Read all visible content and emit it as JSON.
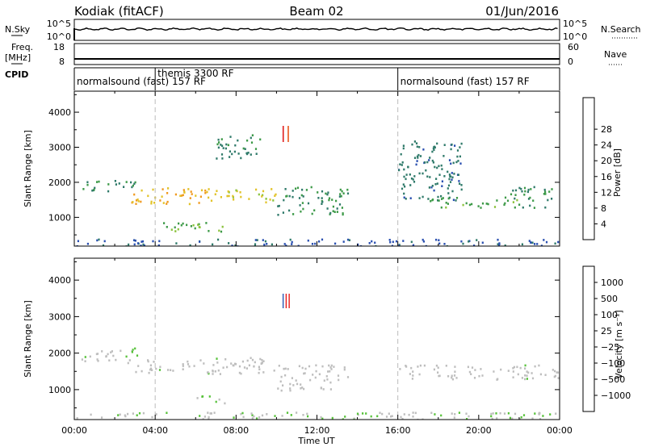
{
  "header": {
    "radar": "Kodiak (fitACF)",
    "beam": "Beam 02",
    "date": "01/Jun/2016"
  },
  "summary": {
    "nsky_label": "N.Sky",
    "nsky_ticks": [
      "10^5",
      "10^0"
    ],
    "nsearch_label": "N.Search",
    "nsearch_ticks": [
      "10^5",
      "10^0"
    ],
    "freq_label": "Freq.",
    "freq_unit": "[MHz]",
    "freq_ticks": [
      "18",
      "8"
    ],
    "nave_label": "Nave",
    "nave_ticks": [
      "60",
      "0"
    ],
    "cpid_label": "CPID",
    "cpid_segments": [
      {
        "start": 0,
        "end": 4,
        "label": "normalsound (fast) 157 RF"
      },
      {
        "start": 4,
        "end": 16,
        "label": "themis 3300 RF"
      },
      {
        "start": 16,
        "end": 24,
        "label": "normalsound (fast) 157 RF"
      }
    ]
  },
  "chart_data": [
    {
      "type": "heatmap",
      "title": "",
      "xlabel": "Time UT",
      "ylabel": "Slant Range [km]",
      "xlim": [
        0,
        24
      ],
      "ylim": [
        180,
        4600
      ],
      "x_ticks": [
        "00:00",
        "04:00",
        "08:00",
        "12:00",
        "16:00",
        "20:00",
        "00:00"
      ],
      "y_ticks": [
        "1000",
        "2000",
        "3000",
        "4000"
      ],
      "colorbar": {
        "label": "Power [dB]",
        "ticks": [
          "4",
          "8",
          "12",
          "16",
          "20",
          "24",
          "28"
        ],
        "range": [
          0,
          30
        ],
        "colors": [
          "#1a1aff",
          "#2a4fb0",
          "#2f7a6a",
          "#3d9a48",
          "#8ac23b",
          "#e2c32a",
          "#f09a1e",
          "#e8571c",
          "#e01c1c"
        ]
      },
      "echo_regions": [
        {
          "t_start": 0.3,
          "t_end": 3.0,
          "range_start": 1750,
          "range_end": 2100,
          "value": 10
        },
        {
          "t_start": 2.8,
          "t_end": 6.5,
          "range_start": 1400,
          "range_end": 1900,
          "value": 20
        },
        {
          "t_start": 6.5,
          "t_end": 10.0,
          "range_start": 1450,
          "range_end": 1850,
          "value": 18
        },
        {
          "t_start": 10.0,
          "t_end": 13.5,
          "range_start": 1100,
          "range_end": 1900,
          "value": 10
        },
        {
          "t_start": 4.2,
          "t_end": 7.5,
          "range_start": 600,
          "range_end": 900,
          "value": 14
        },
        {
          "t_start": 7.0,
          "t_end": 9.3,
          "range_start": 2700,
          "range_end": 3400,
          "value": 9
        },
        {
          "t_start": 16.0,
          "t_end": 19.2,
          "range_start": 1500,
          "range_end": 3200,
          "value": 8
        },
        {
          "t_start": 17.5,
          "t_end": 22.0,
          "range_start": 1300,
          "range_end": 1600,
          "value": 12
        },
        {
          "t_start": 21.5,
          "t_end": 24.0,
          "range_start": 1300,
          "range_end": 1900,
          "value": 10
        },
        {
          "t_start": 0.0,
          "t_end": 24.0,
          "range_start": 200,
          "range_end": 400,
          "value": 6
        }
      ]
    },
    {
      "type": "heatmap",
      "title": "",
      "xlabel": "Time UT",
      "ylabel": "Slant Range [km]",
      "xlim": [
        0,
        24
      ],
      "ylim": [
        180,
        4600
      ],
      "x_ticks": [
        "00:00",
        "04:00",
        "08:00",
        "12:00",
        "16:00",
        "20:00",
        "00:00"
      ],
      "y_ticks": [
        "1000",
        "2000",
        "3000",
        "4000"
      ],
      "colorbar": {
        "label": "Velocity [m s⁻¹]",
        "ticks": [
          "1000",
          "500",
          "100",
          "25",
          "−25",
          "−100",
          "−500",
          "−1000"
        ],
        "range": [
          -1000,
          1000
        ],
        "colors": [
          "#1a1ae6",
          "#2855b4",
          "#2e7f55",
          "#57c23a",
          "#bebebe",
          "#bebebe",
          "#f0a020",
          "#ec6a1a",
          "#e81c1c"
        ]
      },
      "echo_regions": [
        {
          "t_start": 0.3,
          "t_end": 3.0,
          "range_start": 1750,
          "range_end": 2100,
          "value": 0
        },
        {
          "t_start": 2.5,
          "t_end": 3.2,
          "range_start": 1900,
          "range_end": 2200,
          "value": -200
        },
        {
          "t_start": 3.0,
          "t_end": 10.0,
          "range_start": 1450,
          "range_end": 1900,
          "value": 0
        },
        {
          "t_start": 10.0,
          "t_end": 13.5,
          "range_start": 1000,
          "range_end": 1700,
          "value": 80
        },
        {
          "t_start": 6.0,
          "t_end": 7.5,
          "range_start": 650,
          "range_end": 850,
          "value": -150
        },
        {
          "t_start": 16.0,
          "t_end": 24.0,
          "range_start": 1300,
          "range_end": 1700,
          "value": 0
        },
        {
          "t_start": 0.0,
          "t_end": 24.0,
          "range_start": 200,
          "range_end": 400,
          "value": -60
        }
      ]
    }
  ]
}
